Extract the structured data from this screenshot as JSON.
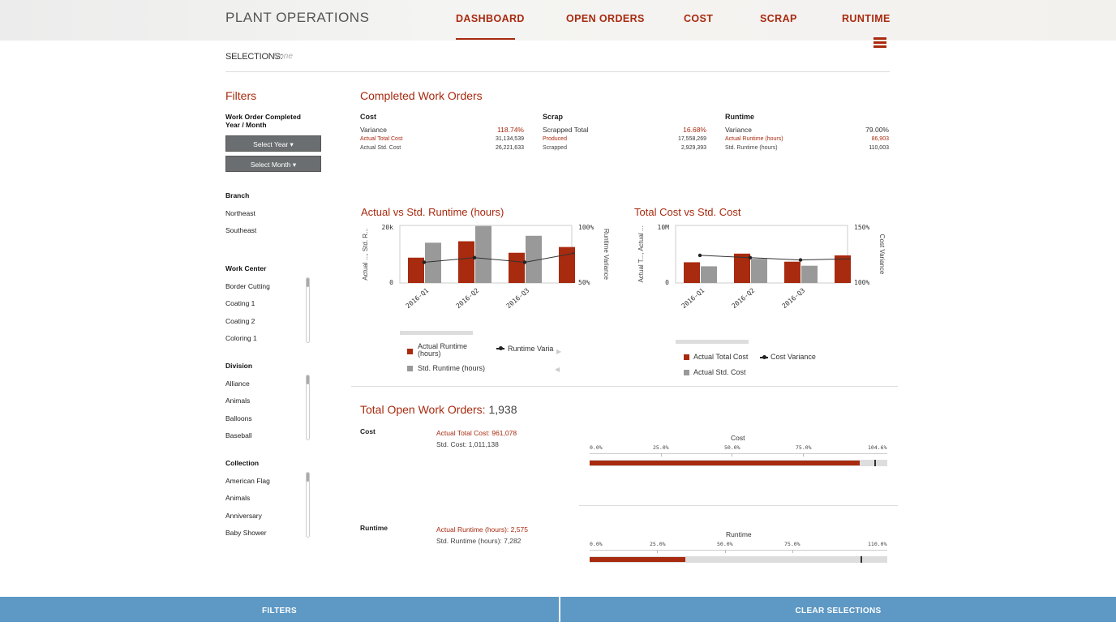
{
  "header": {
    "title": "PLANT OPERATIONS",
    "nav": [
      "DASHBOARD",
      "OPEN ORDERS",
      "COST",
      "SCRAP",
      "RUNTIME"
    ],
    "active_nav": "DASHBOARD",
    "menu_icon": "hamburger-icon"
  },
  "selections": {
    "label": "SELECTIONS:",
    "value": "None"
  },
  "filters": {
    "title": "Filters",
    "date_heading": "Work Order Completed Year / Month",
    "select_year": "Select Year",
    "select_month": "Select Month",
    "branch": {
      "heading": "Branch",
      "items": [
        "Northeast",
        "Southeast"
      ]
    },
    "work_center": {
      "heading": "Work Center",
      "items": [
        "Border Cutting",
        "Coating 1",
        "Coating 2",
        "Coloring 1"
      ]
    },
    "division": {
      "heading": "Division",
      "items": [
        "Alliance",
        "Animals",
        "Balloons",
        "Baseball"
      ]
    },
    "collection": {
      "heading": "Collection",
      "items": [
        "American Flag",
        "Animals",
        "Anniversary",
        "Baby Shower"
      ]
    }
  },
  "completed": {
    "title": "Completed Work Orders",
    "cost": {
      "heading": "Cost",
      "rows": [
        {
          "label": "Variance",
          "value": "118.74%"
        },
        {
          "label": "Actual Total Cost",
          "value": "31,134,539"
        },
        {
          "label": "Actual Std. Cost",
          "value": "26,221,633"
        }
      ]
    },
    "scrap": {
      "heading": "Scrap",
      "rows": [
        {
          "label": "Scrapped Total",
          "value": "16.68%"
        },
        {
          "label": "Produced",
          "value": "17,558,269"
        },
        {
          "label": "Scrapped",
          "value": "2,929,393"
        }
      ]
    },
    "runtime": {
      "heading": "Runtime",
      "rows": [
        {
          "label": "Variance",
          "value": "79.00%"
        },
        {
          "label": "Actual Runtime (hours)",
          "value": "86,903"
        },
        {
          "label": "Std. Runtime (hours)",
          "value": "110,003"
        }
      ]
    }
  },
  "colors": {
    "accent": "#a82a0f",
    "std": "#999999",
    "footer": "#5e98c4"
  },
  "chart_data": [
    {
      "type": "bar",
      "title": "Actual vs Std. Runtime (hours)",
      "ylabel": "Actual ..., Std. R...",
      "y2label": "Runtime Variance",
      "categories": [
        "2016-Q1",
        "2016-Q2",
        "2016-Q3",
        ""
      ],
      "ylim": [
        0,
        20000
      ],
      "y2lim": [
        50,
        100
      ],
      "yticks": [
        "20k",
        "0"
      ],
      "y2ticks": [
        "100%",
        "50%"
      ],
      "series": [
        {
          "name": "Actual Runtime (hours)",
          "values": [
            8800,
            14500,
            10500,
            12500
          ]
        },
        {
          "name": "Std. Runtime (hours)",
          "values": [
            14000,
            19800,
            16400,
            0
          ]
        },
        {
          "name": "Runtime Variance",
          "kind": "line",
          "values": [
            68,
            72,
            68,
            76
          ]
        }
      ],
      "legend": [
        "Actual Runtime (hours)",
        "Runtime Variance",
        "Std. Runtime (hours)"
      ],
      "legend_line_label": "Runtime Varia",
      "legend_placement": "bottom"
    },
    {
      "type": "bar",
      "title": "Total Cost vs Std. Cost",
      "ylabel": "Actual T..., Actual ...",
      "y2label": "Cost Variance",
      "categories": [
        "2016-Q1",
        "2016-Q2",
        "2016-Q3",
        ""
      ],
      "ylim": [
        0,
        10000000
      ],
      "y2lim": [
        100,
        150
      ],
      "yticks": [
        "10M",
        "0"
      ],
      "y2ticks": [
        "150%",
        "100%"
      ],
      "series": [
        {
          "name": "Actual Total Cost",
          "values": [
            3600000,
            5100000,
            3700000,
            4800000
          ]
        },
        {
          "name": "Actual Std. Cost",
          "values": [
            2900000,
            4200000,
            3000000,
            0
          ]
        },
        {
          "name": "Cost Variance",
          "kind": "line",
          "values": [
            124,
            122,
            120,
            121
          ]
        }
      ],
      "legend": [
        "Actual Total Cost",
        "Cost Variance",
        "Actual Std. Cost"
      ],
      "legend_placement": "bottom"
    }
  ],
  "open_orders": {
    "title": "Total Open Work Orders:",
    "count": "1,938",
    "cost": {
      "label": "Cost",
      "actual": "Actual Total Cost: 961,078",
      "std": "Std. Cost: 1,011,138",
      "bullet_title": "Cost",
      "ticks": [
        "0.0%",
        "25.0%",
        "50.0%",
        "75.0%",
        "104.6%"
      ],
      "max_pct": 104.6,
      "actual_pct": 95.0,
      "target_pct": 100.0
    },
    "runtime": {
      "label": "Runtime",
      "actual": "Actual Runtime (hours): 2,575",
      "std": "Std. Runtime (hours): 7,282",
      "bullet_title": "Runtime",
      "ticks": [
        "0.0%",
        "25.0%",
        "50.0%",
        "75.0%",
        "110.0%"
      ],
      "max_pct": 110.0,
      "actual_pct": 35.4,
      "target_pct": 100.0
    }
  },
  "footer": {
    "filters": "FILTERS",
    "clear": "CLEAR SELECTIONS"
  }
}
